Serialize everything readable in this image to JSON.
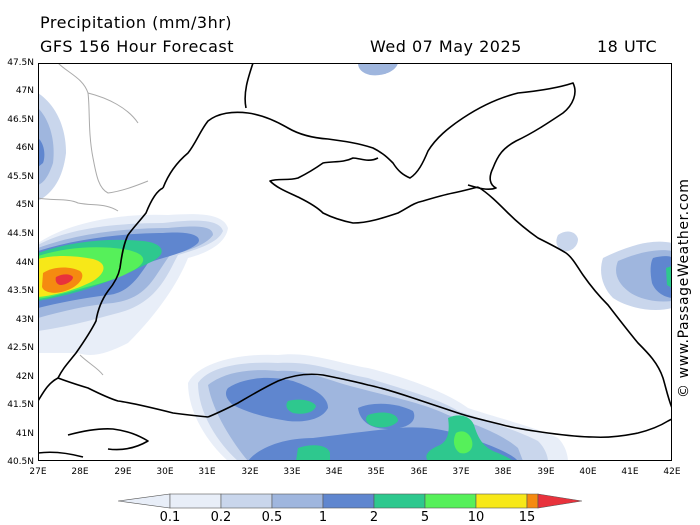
{
  "header": {
    "title": "Precipitation (mm/3hr)",
    "subtitle": "GFS 156 Hour Forecast",
    "date": "Wed 07 May 2025",
    "time": "18 UTC"
  },
  "credit": "© www.PassageWeather.com",
  "lat_labels": [
    "47.5N",
    "47N",
    "46.5N",
    "46N",
    "45.5N",
    "45N",
    "44.5N",
    "44N",
    "43.5N",
    "43N",
    "42.5N",
    "42N",
    "41.5N",
    "41N",
    "40.5N"
  ],
  "lon_labels": [
    "27E",
    "28E",
    "29E",
    "30E",
    "31E",
    "32E",
    "33E",
    "34E",
    "35E",
    "36E",
    "37E",
    "38E",
    "39E",
    "40E",
    "41E",
    "42E"
  ],
  "legend": {
    "labels": [
      "0.1",
      "0.2",
      "0.5",
      "1",
      "2",
      "5",
      "10",
      "15"
    ],
    "colors": [
      "#e8eef8",
      "#c9d6ec",
      "#9fb6de",
      "#5f86cf",
      "#2ec88e",
      "#56f05a",
      "#f7e818",
      "#f58a10",
      "#e8323c"
    ]
  }
}
